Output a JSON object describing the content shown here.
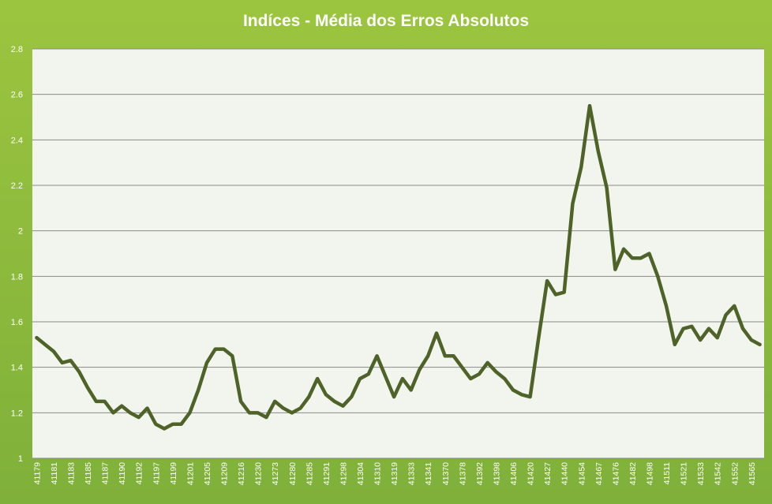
{
  "chart_data": {
    "type": "line",
    "title": "Indíces - Média dos Erros Absolutos",
    "xlabel": "",
    "ylabel": "",
    "ylim": [
      1,
      2.8
    ],
    "yticks": [
      "1",
      "1.2",
      "1.4",
      "1.6",
      "1.8",
      "2",
      "2.2",
      "2.4",
      "2.6",
      "2.8"
    ],
    "grid": true,
    "legend": "none",
    "tick_labels": [
      "41179",
      "41181",
      "41183",
      "41185",
      "41187",
      "41190",
      "41192",
      "41197",
      "41199",
      "41201",
      "41205",
      "41209",
      "41216",
      "41230",
      "41273",
      "41280",
      "41285",
      "41291",
      "41298",
      "41304",
      "41310",
      "41319",
      "41333",
      "41341",
      "41370",
      "41378",
      "41392",
      "41398",
      "41406",
      "41420",
      "41427",
      "41440",
      "41454",
      "41467",
      "41476",
      "41482",
      "41498",
      "41511",
      "41521",
      "41533",
      "41542",
      "41552",
      "41565"
    ],
    "series": [
      {
        "color": "#4f6228",
        "values": [
          1.53,
          1.5,
          1.47,
          1.42,
          1.43,
          1.38,
          1.31,
          1.25,
          1.25,
          1.2,
          1.23,
          1.2,
          1.18,
          1.22,
          1.15,
          1.13,
          1.15,
          1.15,
          1.2,
          1.3,
          1.42,
          1.48,
          1.48,
          1.45,
          1.25,
          1.2,
          1.2,
          1.18,
          1.25,
          1.22,
          1.2,
          1.22,
          1.27,
          1.35,
          1.28,
          1.25,
          1.23,
          1.27,
          1.35,
          1.37,
          1.45,
          1.36,
          1.27,
          1.35,
          1.3,
          1.39,
          1.45,
          1.55,
          1.45,
          1.45,
          1.4,
          1.35,
          1.37,
          1.42,
          1.38,
          1.35,
          1.3,
          1.28,
          1.27,
          1.53,
          1.78,
          1.72,
          1.73,
          2.12,
          2.28,
          2.55,
          2.35,
          2.19,
          1.83,
          1.92,
          1.88,
          1.88,
          1.9,
          1.8,
          1.67,
          1.5,
          1.57,
          1.58,
          1.52,
          1.57,
          1.53,
          1.63,
          1.67,
          1.57,
          1.52,
          1.5
        ]
      }
    ]
  }
}
